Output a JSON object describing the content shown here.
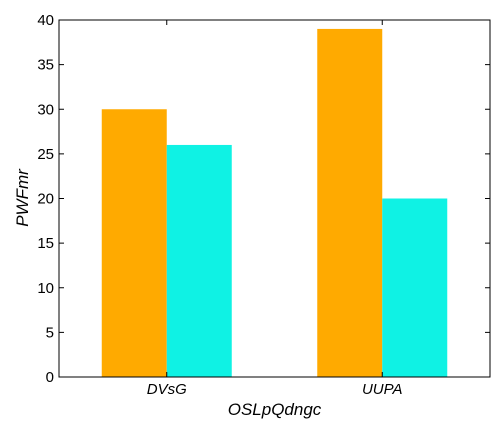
{
  "chart_data": {
    "type": "bar",
    "categories": [
      "DVsG",
      "UUPA"
    ],
    "series": [
      {
        "color": "#FFAA00",
        "values": [
          30,
          39
        ]
      },
      {
        "color": "#0FF2E4",
        "values": [
          26,
          20
        ]
      }
    ],
    "title": "",
    "xlabel": "OSLpQdngc",
    "ylabel": "PWFmr",
    "ylim": [
      0,
      40
    ],
    "yticks": [
      0,
      5,
      10,
      15,
      20,
      25,
      30,
      35,
      40
    ],
    "grid": false,
    "legend": "none"
  }
}
